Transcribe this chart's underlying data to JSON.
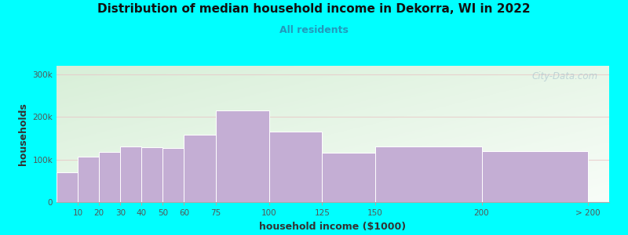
{
  "title": "Distribution of median household income in Dekorra, WI in 2022",
  "subtitle": "All residents",
  "xlabel": "household income ($1000)",
  "ylabel": "households",
  "background_color": "#00FFFF",
  "plot_bg_top_left": "#d8efd8",
  "plot_bg_bottom_right": "#f8fdf8",
  "bar_color": "#c4aed4",
  "bar_edge_color": "#ffffff",
  "title_color": "#111111",
  "subtitle_color": "#2299bb",
  "watermark": "City-Data.com",
  "categories": [
    "10",
    "20",
    "30",
    "40",
    "50",
    "60",
    "75",
    "100",
    "125",
    "150",
    "200",
    "> 200"
  ],
  "bar_lefts": [
    0,
    10,
    20,
    30,
    40,
    50,
    60,
    75,
    100,
    125,
    150,
    200
  ],
  "widths": [
    10,
    10,
    10,
    10,
    10,
    10,
    15,
    25,
    25,
    25,
    50,
    50
  ],
  "values": [
    70000,
    107000,
    118000,
    130000,
    128000,
    127000,
    158000,
    215000,
    165000,
    115000,
    130000,
    120000
  ],
  "ylim": [
    0,
    320000
  ],
  "yticks": [
    0,
    100000,
    200000,
    300000
  ],
  "ytick_labels": [
    "0",
    "100k",
    "200k",
    "300k"
  ],
  "grid_color": "#e8c8c8",
  "grid_alpha": 0.8,
  "xlim_end": 260
}
